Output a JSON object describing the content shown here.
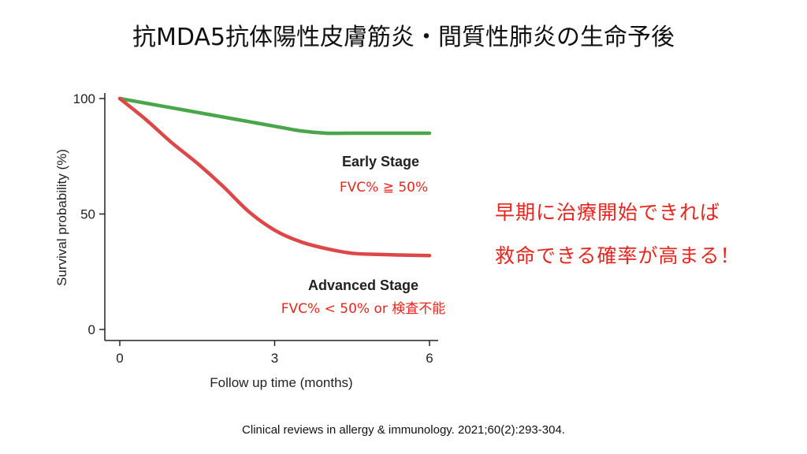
{
  "slide": {
    "title": "抗MDA5抗体陽性皮膚筋炎・間質性肺炎の生命予後",
    "callout_line1": "早期に治療開始できれば",
    "callout_line2": "救命できる確率が高まる！",
    "citation": "Clinical reviews in allergy & immunology. 2021;60(2):293-304."
  },
  "colors": {
    "early": "#4aa64a",
    "advanced": "#dd4747",
    "annotation_red": "#e8251f"
  },
  "chart_data": {
    "type": "line",
    "xlabel": "Follow up time (months)",
    "ylabel": "Survival probability (%)",
    "xlim": [
      0,
      6
    ],
    "ylim": [
      0,
      100
    ],
    "xticks": [
      0,
      3,
      6
    ],
    "yticks": [
      0,
      50,
      100
    ],
    "x_tick_labels": [
      "0",
      "3",
      "6"
    ],
    "y_tick_labels": [
      "0",
      "50",
      "100"
    ],
    "grid": false,
    "series": [
      {
        "name": "Early Stage",
        "sublabel": "FVC% ≧ 50%",
        "color": "#4aa64a",
        "x": [
          0,
          0.5,
          1,
          1.5,
          2,
          2.5,
          3,
          3.5,
          4,
          4.5,
          5,
          5.5,
          6
        ],
        "y": [
          100,
          98,
          96,
          94,
          92,
          90,
          88,
          86,
          85,
          85,
          85,
          85,
          85
        ]
      },
      {
        "name": "Advanced Stage",
        "sublabel": "FVC% < 50% or 検査不能",
        "color": "#dd4747",
        "x": [
          0,
          0.5,
          1,
          1.5,
          2,
          2.5,
          3,
          3.5,
          4,
          4.5,
          5,
          5.5,
          6
        ],
        "y": [
          100,
          91,
          81,
          72,
          62,
          51,
          43,
          38,
          35,
          33,
          32.5,
          32.2,
          32
        ]
      }
    ]
  }
}
